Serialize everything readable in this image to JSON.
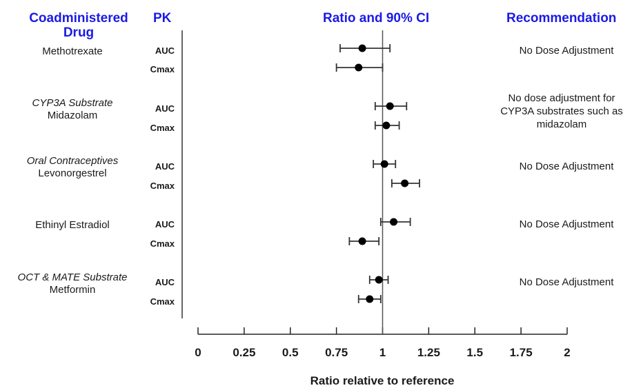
{
  "headers": {
    "drug": "Coadministered Drug",
    "pk": "PK",
    "ratio": "Ratio and 90% CI",
    "recommendation": "Recommendation"
  },
  "drugs": [
    {
      "category": "",
      "name": "Methotrexate"
    },
    {
      "category": "CYP3A Substrate",
      "name": "Midazolam"
    },
    {
      "category": "Oral Contraceptives",
      "name": "Levonorgestrel"
    },
    {
      "category": "",
      "name": "Ethinyl Estradiol"
    },
    {
      "category": "OCT & MATE Substrate",
      "name": "Metformin"
    }
  ],
  "recommendations": [
    "No Dose Adjustment",
    "No dose adjustment for CYP3A substrates such as midazolam",
    "No Dose Adjustment",
    "No Dose Adjustment",
    "No Dose Adjustment"
  ],
  "chart_data": {
    "type": "scatter",
    "subtype": "forest-plot",
    "xlabel": "Ratio relative to reference",
    "xlim": [
      0,
      2
    ],
    "xticks": [
      0,
      0.25,
      0.5,
      0.75,
      1,
      1.25,
      1.5,
      1.75,
      2
    ],
    "xtick_labels": [
      "0",
      "0.25",
      "0.5",
      "0.75",
      "1",
      "1.25",
      "1.5",
      "1.75",
      "2"
    ],
    "reference_line": 1,
    "rows": [
      {
        "drug": "Methotrexate",
        "pk": "AUC",
        "ratio": 0.89,
        "ci": [
          0.77,
          1.04
        ]
      },
      {
        "drug": "Methotrexate",
        "pk": "Cmax",
        "ratio": 0.87,
        "ci": [
          0.75,
          1.0
        ]
      },
      {
        "drug": "Midazolam",
        "pk": "AUC",
        "ratio": 1.04,
        "ci": [
          0.96,
          1.13
        ]
      },
      {
        "drug": "Midazolam",
        "pk": "Cmax",
        "ratio": 1.02,
        "ci": [
          0.96,
          1.09
        ]
      },
      {
        "drug": "Levonorgestrel",
        "pk": "AUC",
        "ratio": 1.01,
        "ci": [
          0.95,
          1.07
        ]
      },
      {
        "drug": "Levonorgestrel",
        "pk": "Cmax",
        "ratio": 1.12,
        "ci": [
          1.05,
          1.2
        ]
      },
      {
        "drug": "Ethinyl Estradiol",
        "pk": "AUC",
        "ratio": 1.06,
        "ci": [
          0.99,
          1.15
        ]
      },
      {
        "drug": "Ethinyl Estradiol",
        "pk": "Cmax",
        "ratio": 0.89,
        "ci": [
          0.82,
          0.98
        ]
      },
      {
        "drug": "Metformin",
        "pk": "AUC",
        "ratio": 0.98,
        "ci": [
          0.93,
          1.03
        ]
      },
      {
        "drug": "Metformin",
        "pk": "Cmax",
        "ratio": 0.93,
        "ci": [
          0.87,
          0.99
        ]
      }
    ],
    "colors": {
      "marker": "#000000",
      "line": "#333333",
      "header": "#1a1ae6"
    }
  }
}
